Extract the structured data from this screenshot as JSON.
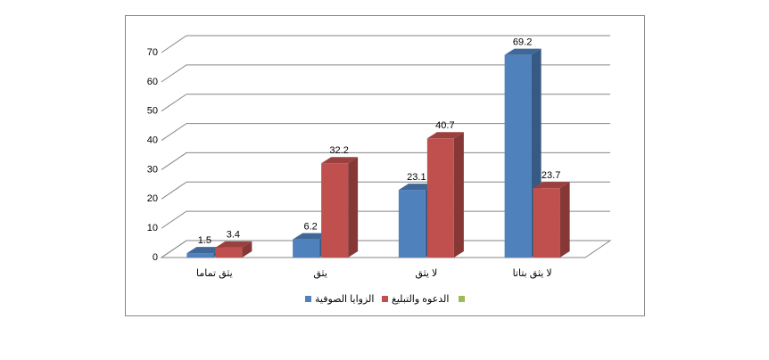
{
  "chart_data": {
    "type": "bar3d",
    "categories": [
      "يثق تماما",
      "يثق",
      "لا يثق",
      "لا يثق بتاتا"
    ],
    "series": [
      {
        "name": "الزوايا الصوفية",
        "color": "#4f81bd",
        "values": [
          1.5,
          6.2,
          23.1,
          69.2
        ]
      },
      {
        "name": "الدعوه والتبليغ",
        "color": "#c0504d",
        "values": [
          3.4,
          32.2,
          40.7,
          23.7
        ]
      }
    ],
    "ylim": [
      0,
      70
    ],
    "yticks": [
      0,
      10,
      20,
      30,
      40,
      50,
      60,
      70
    ],
    "grid": true
  }
}
